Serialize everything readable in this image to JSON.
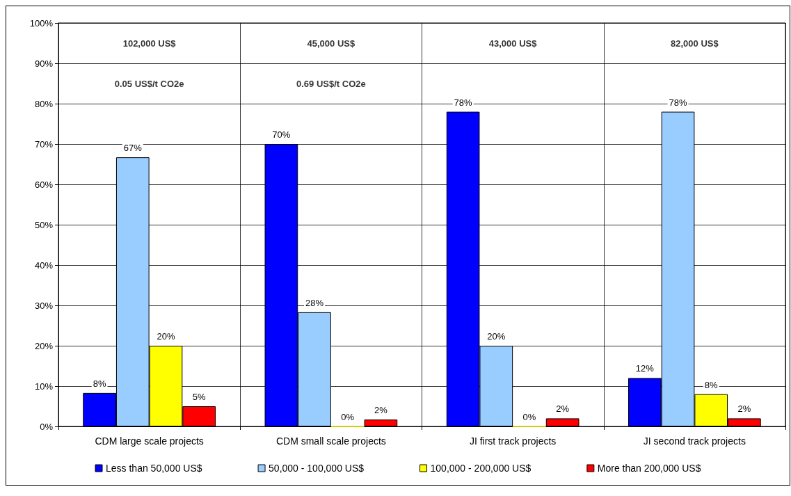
{
  "chart_data": {
    "type": "bar",
    "categories": [
      "CDM large scale projects",
      "CDM small scale projects",
      "JI first track projects",
      "JI second track projects"
    ],
    "series": [
      {
        "name": "Less than 50,000 US$",
        "color": "#0000ff",
        "values": [
          8.3,
          70,
          78,
          12
        ],
        "value_labels": [
          "8%",
          "70%",
          "78%",
          "12%"
        ]
      },
      {
        "name": "50,000 - 100,000 US$",
        "color": "#99ccff",
        "values": [
          66.7,
          28.3,
          20,
          78
        ],
        "value_labels": [
          "67%",
          "28%",
          "20%",
          "78%"
        ]
      },
      {
        "name": "100,000 - 200,000 US$",
        "color": "#ffff00",
        "values": [
          20,
          0,
          0,
          8
        ],
        "value_labels": [
          "20%",
          "0%",
          "0%",
          "8%"
        ]
      },
      {
        "name": "More than 200,000 US$",
        "color": "#ff0000",
        "values": [
          5,
          1.7,
          2,
          2
        ],
        "value_labels": [
          "5%",
          "2%",
          "2%",
          "2%"
        ]
      }
    ],
    "ylim": [
      0,
      100
    ],
    "yticks": [
      {
        "value": 0,
        "label": "0%"
      },
      {
        "value": 10,
        "label": "10%"
      },
      {
        "value": 20,
        "label": "20%"
      },
      {
        "value": 30,
        "label": "30%"
      },
      {
        "value": 40,
        "label": "40%"
      },
      {
        "value": 50,
        "label": "50%"
      },
      {
        "value": 60,
        "label": "60%"
      },
      {
        "value": 70,
        "label": "70%"
      },
      {
        "value": 80,
        "label": "80%"
      },
      {
        "value": 90,
        "label": "90%"
      },
      {
        "value": 100,
        "label": "100%"
      }
    ],
    "annotations": [
      "102,000 US$",
      "45,000 US$",
      "43,000 US$",
      "82,000 US$",
      "0.05 US$/t CO2e",
      "0.69 US$/t CO2e"
    ],
    "grid": true,
    "legend": "bottom"
  }
}
